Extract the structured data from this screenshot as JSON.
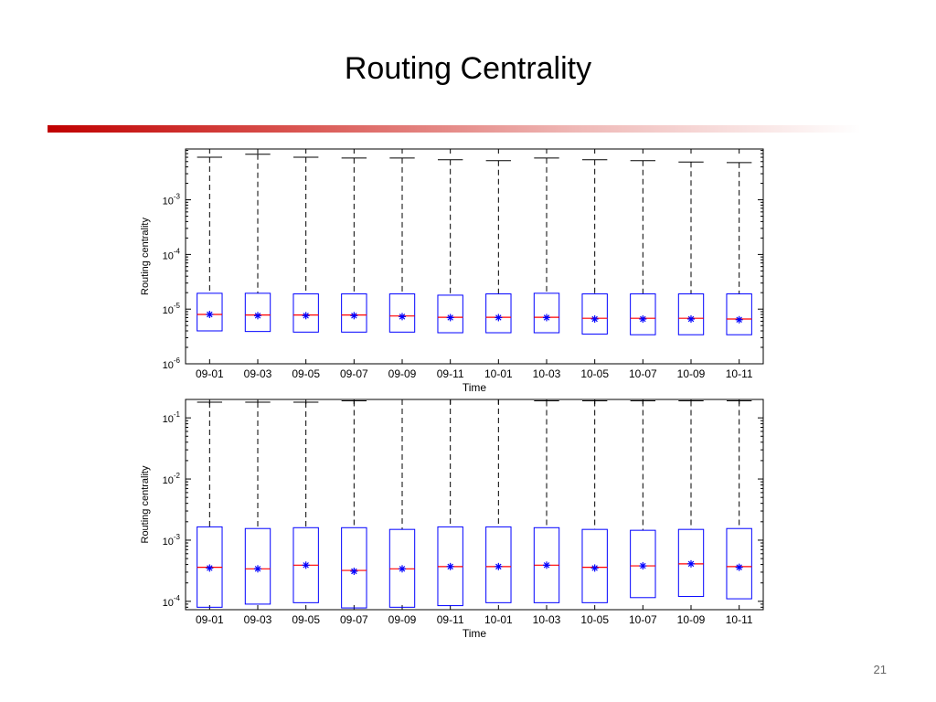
{
  "slide": {
    "title": "Routing Centrality",
    "page_number": "21"
  },
  "colors": {
    "box": "#0000ff",
    "median": "#ff0000",
    "mean_marker": "#0000ff",
    "whisker": "#000000"
  },
  "chart_data": [
    {
      "type": "box",
      "xlabel": "Time",
      "ylabel": "Routing centrality",
      "yscale": "log",
      "ylim": [
        1e-06,
        0.0085
      ],
      "yticks": [
        {
          "value": 1e-06,
          "base": "10",
          "exp": "-6"
        },
        {
          "value": 1e-05,
          "base": "10",
          "exp": "-5"
        },
        {
          "value": 0.0001,
          "base": "10",
          "exp": "-4"
        },
        {
          "value": 0.001,
          "base": "10",
          "exp": "-3"
        }
      ],
      "categories": [
        "09-01",
        "09-03",
        "09-05",
        "09-07",
        "09-09",
        "09-11",
        "10-01",
        "10-03",
        "10-05",
        "10-07",
        "10-09",
        "10-11"
      ],
      "whisker_high": [
        0.006,
        0.0068,
        0.006,
        0.0058,
        0.0058,
        0.0054,
        0.0052,
        0.0058,
        0.0054,
        0.0052,
        0.0049,
        0.0048
      ],
      "q3": [
        1.95e-05,
        1.95e-05,
        1.9e-05,
        1.9e-05,
        1.9e-05,
        1.8e-05,
        1.9e-05,
        1.95e-05,
        1.9e-05,
        1.9e-05,
        1.9e-05,
        1.9e-05
      ],
      "median": [
        8e-06,
        7.8e-06,
        7.8e-06,
        7.8e-06,
        7.5e-06,
        7.1e-06,
        7.1e-06,
        7.1e-06,
        6.8e-06,
        6.8e-06,
        6.8e-06,
        6.6e-06
      ],
      "mean": [
        8e-06,
        7.6e-06,
        7.6e-06,
        7.6e-06,
        7.3e-06,
        7e-06,
        7e-06,
        7e-06,
        6.6e-06,
        6.6e-06,
        6.6e-06,
        6.4e-06
      ],
      "q1": [
        4e-06,
        3.9e-06,
        3.8e-06,
        3.8e-06,
        3.8e-06,
        3.7e-06,
        3.7e-06,
        3.7e-06,
        3.5e-06,
        3.4e-06,
        3.4e-06,
        3.4e-06
      ]
    },
    {
      "type": "box",
      "xlabel": "Time",
      "ylabel": "Routing centrality",
      "yscale": "log",
      "ylim": [
        7.3e-05,
        0.2
      ],
      "yticks": [
        {
          "value": 0.0001,
          "base": "10",
          "exp": "-4"
        },
        {
          "value": 0.001,
          "base": "10",
          "exp": "-3"
        },
        {
          "value": 0.01,
          "base": "10",
          "exp": "-2"
        },
        {
          "value": 0.1,
          "base": "10",
          "exp": "-1"
        }
      ],
      "categories": [
        "09-01",
        "09-03",
        "09-05",
        "09-07",
        "09-09",
        "09-11",
        "10-01",
        "10-03",
        "10-05",
        "10-07",
        "10-09",
        "10-11"
      ],
      "whisker_high": [
        0.18,
        0.18,
        0.18,
        0.19,
        0.2,
        0.2,
        0.2,
        0.19,
        0.19,
        0.19,
        0.19,
        0.19
      ],
      "q3": [
        0.00165,
        0.00155,
        0.0016,
        0.0016,
        0.0015,
        0.00165,
        0.00165,
        0.0016,
        0.0015,
        0.00145,
        0.0015,
        0.00155
      ],
      "median": [
        0.00036,
        0.00034,
        0.00039,
        0.00032,
        0.00034,
        0.00037,
        0.00037,
        0.00039,
        0.00036,
        0.00038,
        0.00041,
        0.00037
      ],
      "mean": [
        0.00035,
        0.00034,
        0.00039,
        0.00031,
        0.00034,
        0.00037,
        0.00037,
        0.00039,
        0.00035,
        0.00038,
        0.00041,
        0.00036
      ],
      "q1": [
        8e-05,
        9e-05,
        9.5e-05,
        7.8e-05,
        8e-05,
        8.5e-05,
        9.5e-05,
        9.5e-05,
        9.5e-05,
        0.000115,
        0.00012,
        0.00011
      ]
    }
  ]
}
